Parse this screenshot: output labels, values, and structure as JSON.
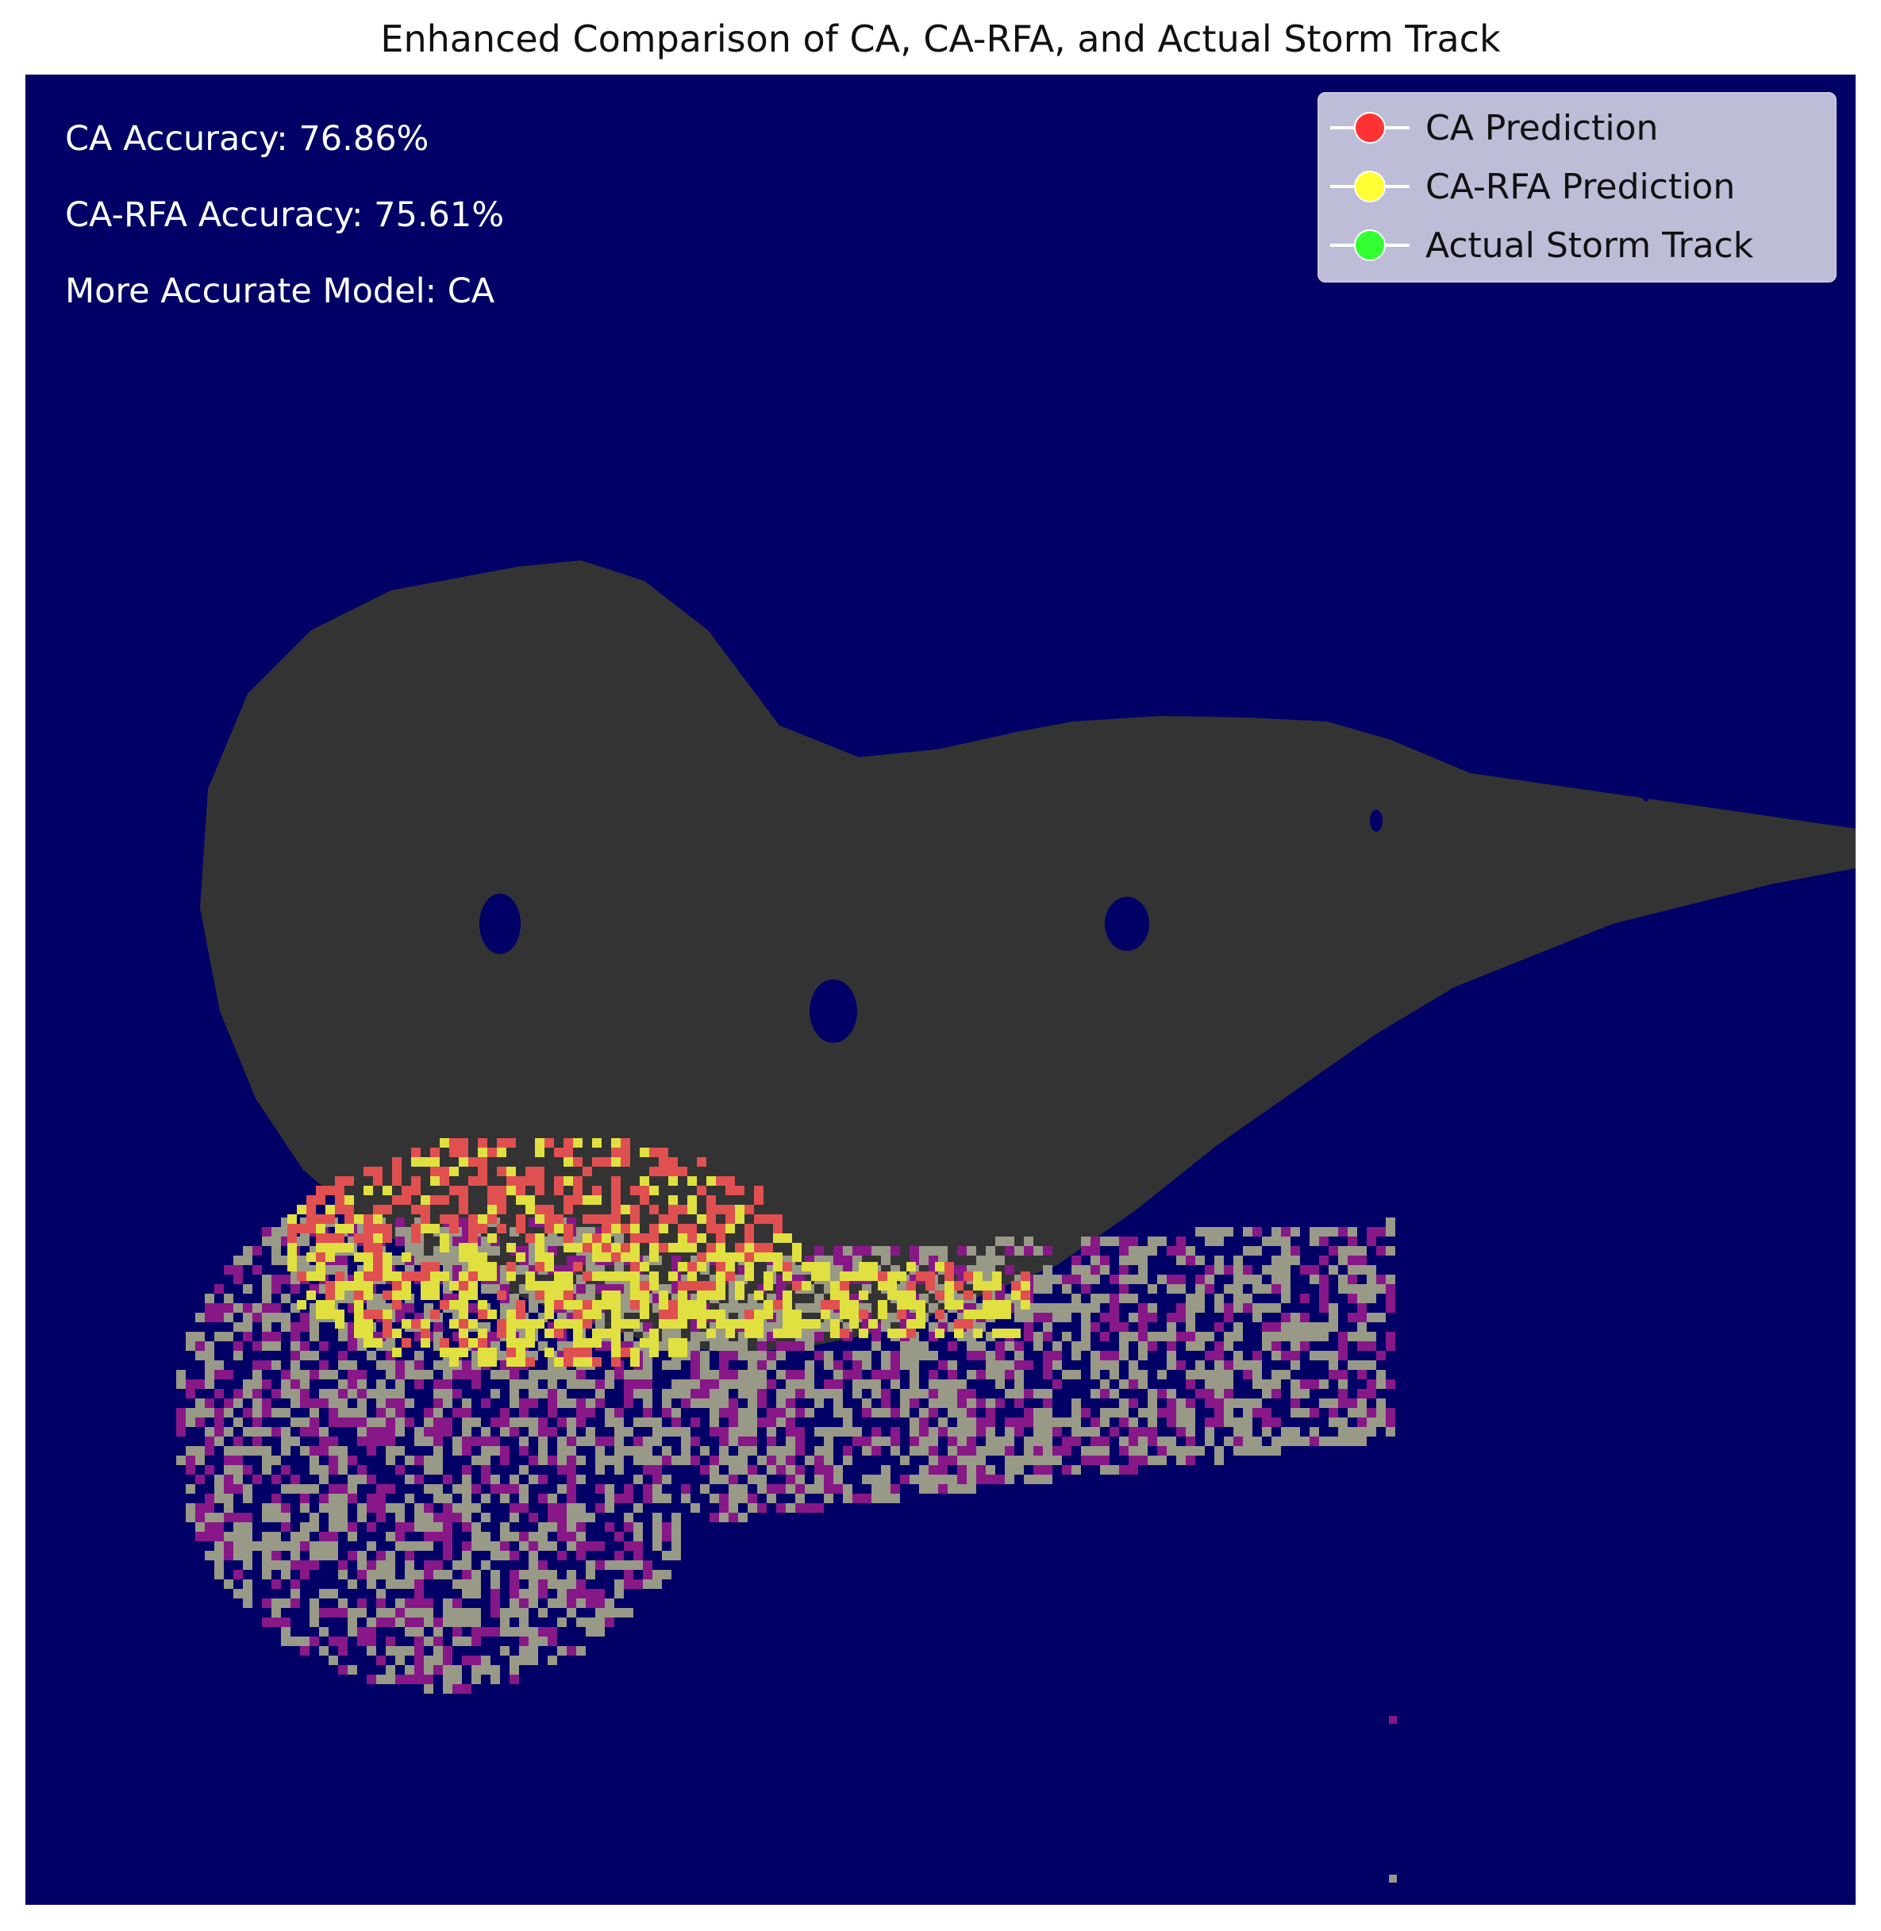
{
  "chart_data": {
    "type": "heatmap",
    "title": "Enhanced Comparison of CA, CA-RFA, and Actual Storm Track",
    "xlabel": "",
    "ylabel": "",
    "axes_visible": false,
    "annotations": [
      "CA Accuracy: 76.86%",
      "CA-RFA Accuracy: 75.61%",
      "More Accurate Model: CA"
    ],
    "metrics": {
      "ca_accuracy_pct": 76.86,
      "ca_rfa_accuracy_pct": 75.61,
      "more_accurate_model": "CA"
    },
    "legend": {
      "placement": "top-right",
      "entries": [
        {
          "label": "CA Prediction",
          "color": "#ff3333"
        },
        {
          "label": "CA-RFA Prediction",
          "color": "#ffff33"
        },
        {
          "label": "Actual Storm Track",
          "color": "#33ff33"
        }
      ]
    },
    "colors": {
      "background": "#000066",
      "region": "#333333",
      "ca_prediction": "#e05050",
      "ca_rfa_prediction": "#e0e040",
      "actual_overlap_a": "#999988",
      "actual_overlap_b": "#881888"
    }
  }
}
